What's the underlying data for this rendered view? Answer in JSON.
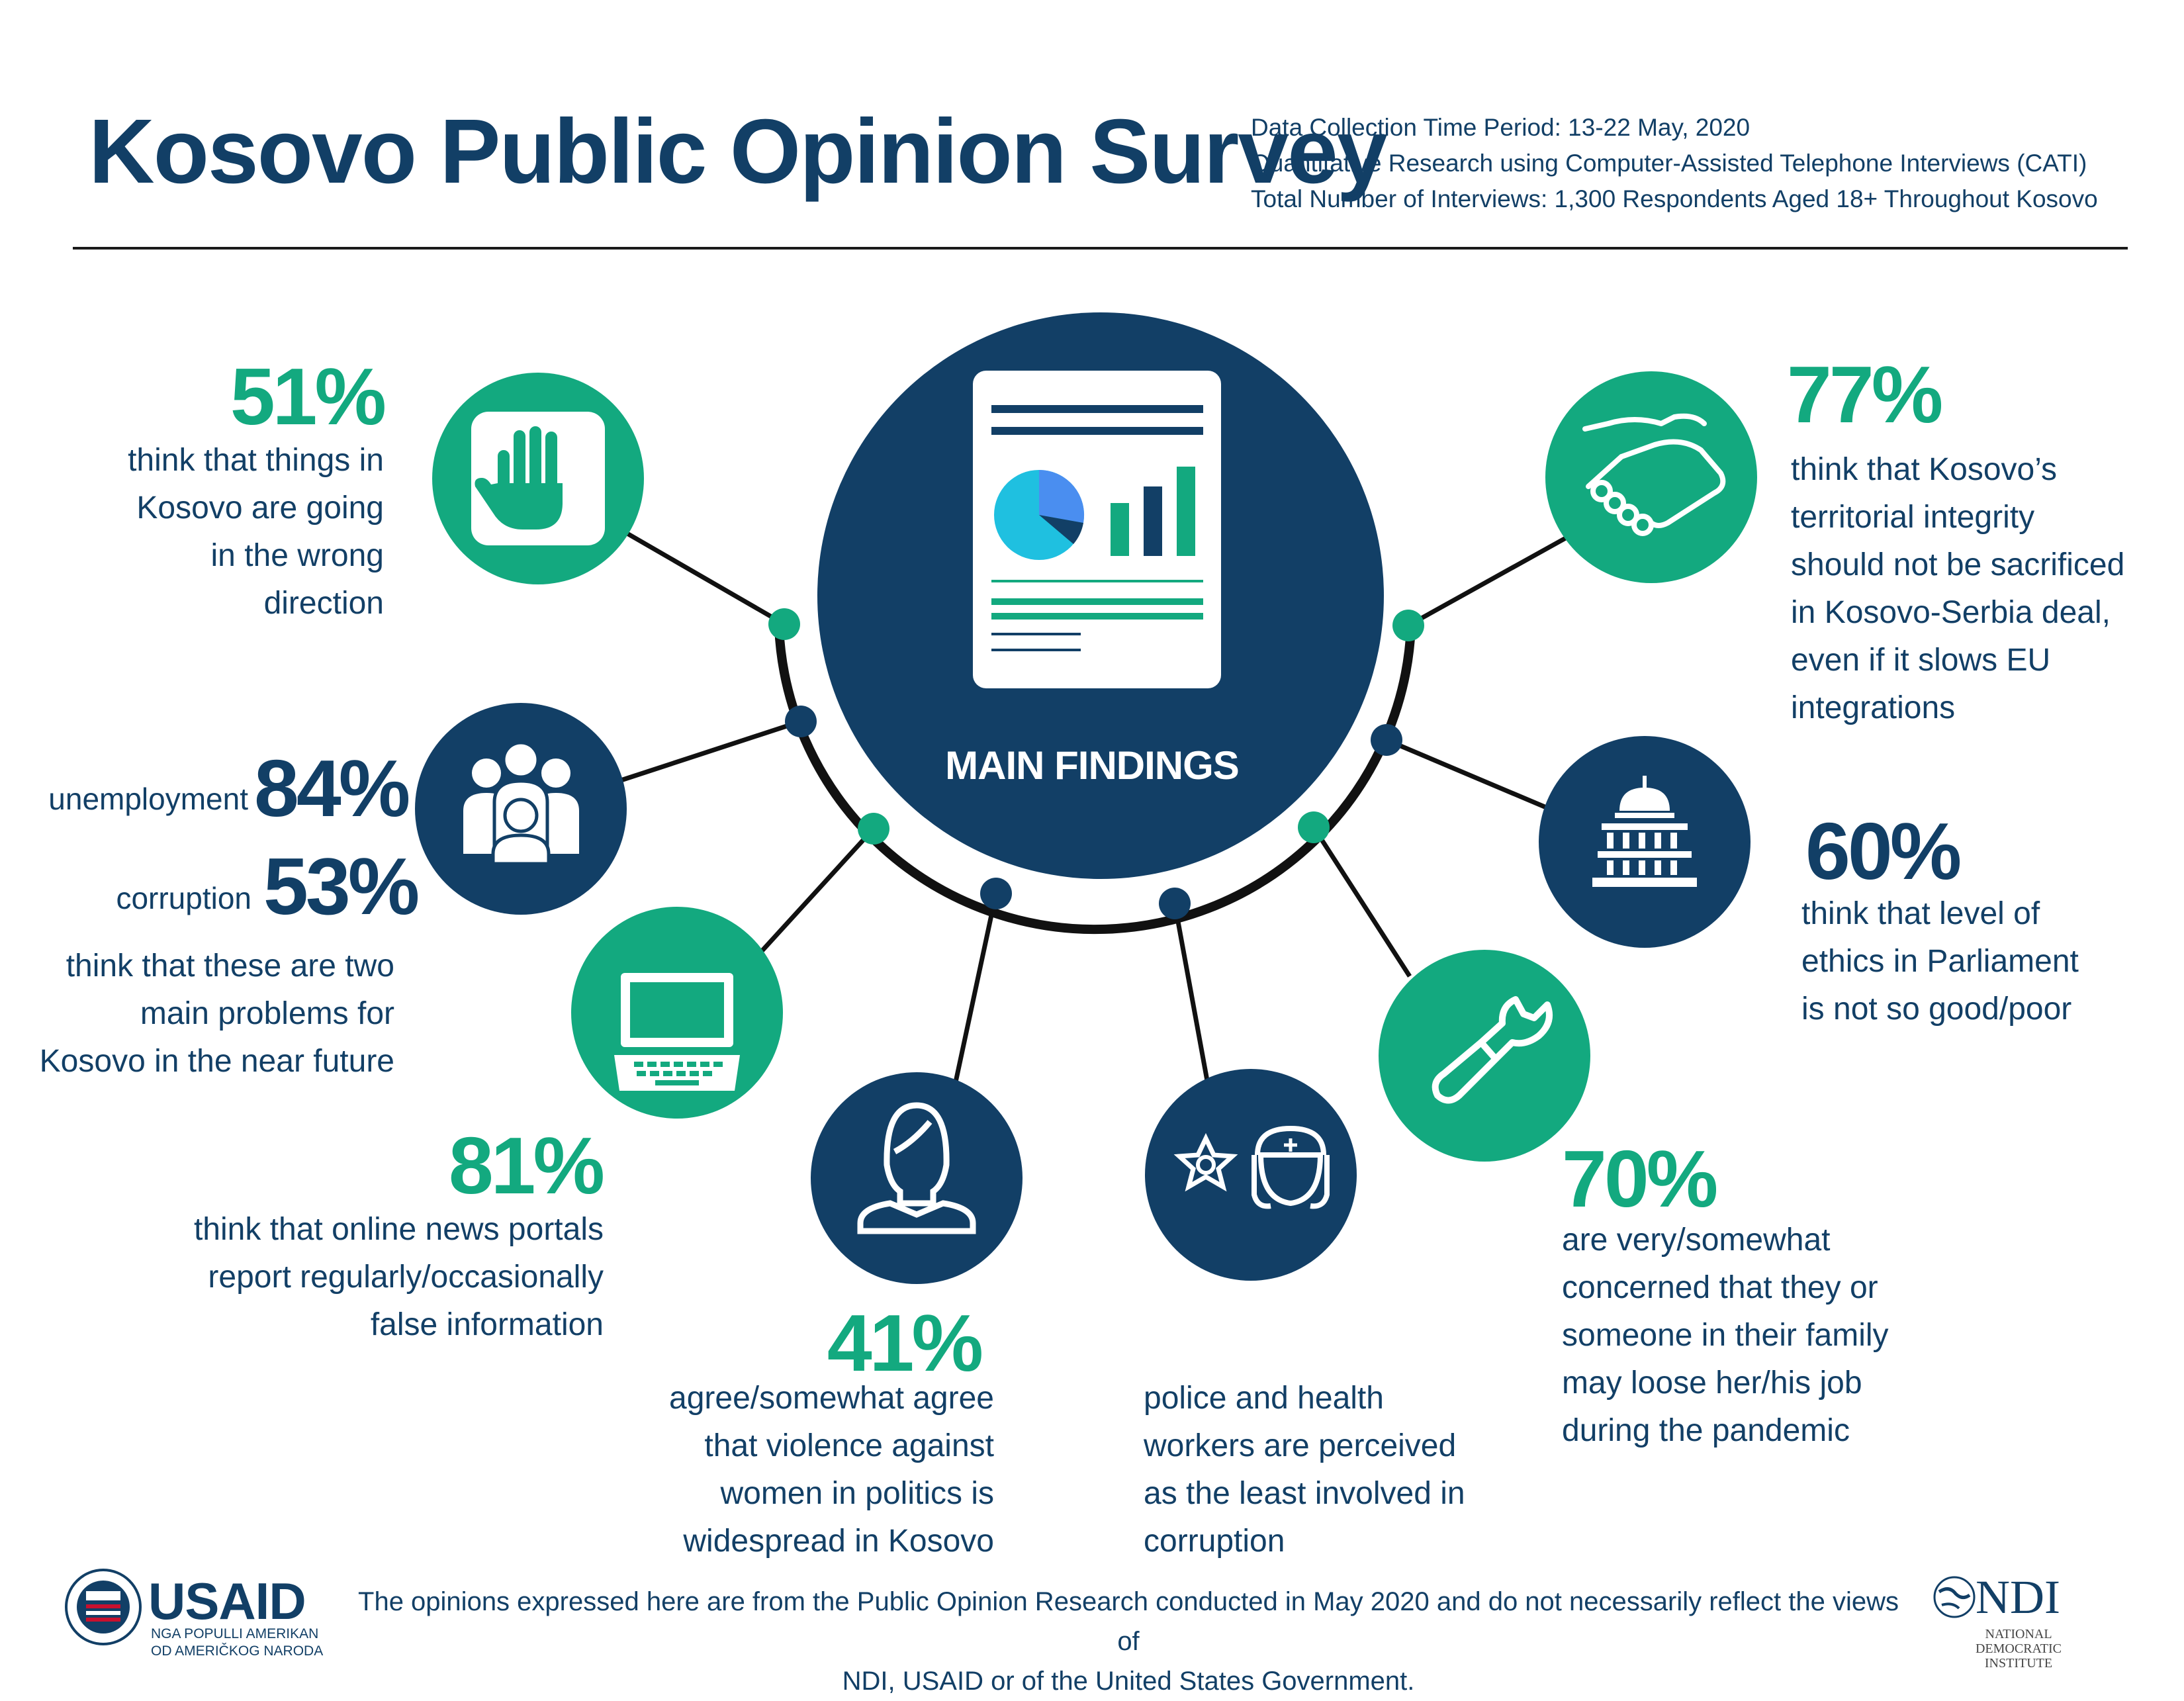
{
  "header": {
    "title": "Kosovo Public Opinion Survey",
    "meta_lines": [
      "Data Collection Time Period: 13-22 May, 2020",
      "Quantitative Research using Computer-Assisted Telephone Interviews (CATI)",
      "Total Number of Interviews: 1,300 Respondents Aged 18+ Throughout Kosovo"
    ]
  },
  "center": {
    "label": "MAIN FINDINGS"
  },
  "findings": {
    "wrong_direction": {
      "pct": "51%",
      "lines": [
        "think that things in",
        "Kosovo are going",
        "in the wrong",
        "direction"
      ],
      "icon": "stop-hand-icon"
    },
    "problems": {
      "unemployment_label": "unemployment",
      "unemployment_pct": "84%",
      "corruption_label": "corruption",
      "corruption_pct": "53%",
      "lines": [
        "think that these are two",
        "main problems for",
        "Kosovo in the near future"
      ],
      "icon": "people-group-icon"
    },
    "online_news": {
      "pct": "81%",
      "lines": [
        "think that online news portals",
        "report regularly/occasionally",
        "false information"
      ],
      "icon": "laptop-icon"
    },
    "violence": {
      "pct": "41%",
      "lines": [
        "agree/somewhat agree",
        "that violence against",
        "women in politics is",
        "widespread in Kosovo"
      ],
      "icon": "woman-icon"
    },
    "police_health": {
      "lines": [
        "police and health",
        "workers are perceived",
        "as the least involved in",
        "corruption"
      ],
      "icons": [
        "police-badge-icon",
        "nurse-icon"
      ]
    },
    "job_loss": {
      "pct": "70%",
      "lines": [
        "are very/somewhat",
        "concerned that they or",
        "someone in their family",
        "may loose her/his job",
        "during the pandemic"
      ],
      "icon": "broken-wrench-icon"
    },
    "parliament": {
      "pct": "60%",
      "lines": [
        "think that level of",
        "ethics in Parliament",
        "is not so good/poor"
      ],
      "icon": "capitol-building-icon"
    },
    "territorial": {
      "pct": "77%",
      "lines": [
        "think that Kosovo’s",
        "territorial integrity",
        "should not be sacrificed",
        "in Kosovo-Serbia deal,",
        "even if it slows EU",
        "integrations"
      ],
      "icon": "handshake-icon"
    }
  },
  "footer": {
    "lines": [
      "The opinions expressed here are from the Public Opinion Research conducted in May 2020 and do not necessarily reflect the views of",
      "NDI, USAID or of the United States Government."
    ]
  },
  "logos": {
    "usaid": {
      "word": "USAID",
      "sub_lines": [
        "NGA POPULLI AMERIKAN",
        "OD AMERIČKOG NARODA"
      ]
    },
    "ndi": {
      "word": "NDI",
      "sub_lines": [
        "NATIONAL",
        "DEMOCRATIC",
        "INSTITUTE"
      ]
    }
  },
  "colors": {
    "navy": "#123f66",
    "green": "#13a97f",
    "chart_blue": "#4a8ef0",
    "chart_cyan": "#1fc0e0"
  }
}
